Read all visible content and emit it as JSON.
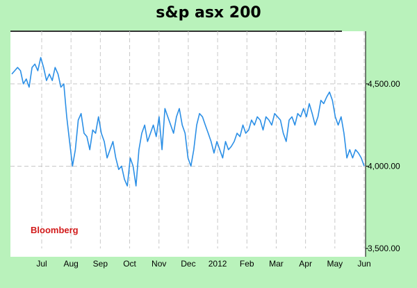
{
  "chart_data": {
    "type": "line",
    "title": "s&p asx 200",
    "xlabel": "",
    "ylabel": "",
    "x_ticks": [
      "Jul",
      "Aug",
      "Sep",
      "Oct",
      "Nov",
      "Dec",
      "2012",
      "Feb",
      "Mar",
      "Apr",
      "May",
      "Jun"
    ],
    "y_ticks": [
      "3,500.00",
      "4,000.00",
      "4,500.00"
    ],
    "y_tick_values": [
      3500,
      4000,
      4500
    ],
    "ylim": [
      3500,
      4820
    ],
    "grid": true,
    "watermark": "Bloomberg",
    "series": [
      {
        "color": "#2b8fe6",
        "values": [
          4560,
          4580,
          4600,
          4580,
          4500,
          4530,
          4480,
          4600,
          4620,
          4580,
          4660,
          4600,
          4520,
          4560,
          4520,
          4600,
          4560,
          4480,
          4500,
          4300,
          4150,
          4000,
          4100,
          4280,
          4320,
          4200,
          4180,
          4100,
          4220,
          4200,
          4300,
          4200,
          4150,
          4050,
          4100,
          4150,
          4050,
          3980,
          4000,
          3920,
          3880,
          4050,
          4000,
          3880,
          4100,
          4200,
          4250,
          4150,
          4200,
          4250,
          4180,
          4300,
          4100,
          4350,
          4300,
          4250,
          4200,
          4300,
          4350,
          4250,
          4200,
          4050,
          4000,
          4100,
          4250,
          4320,
          4300,
          4250,
          4200,
          4150,
          4080,
          4150,
          4100,
          4050,
          4150,
          4100,
          4120,
          4150,
          4200,
          4180,
          4250,
          4200,
          4220,
          4280,
          4250,
          4300,
          4280,
          4220,
          4300,
          4280,
          4250,
          4320,
          4300,
          4280,
          4200,
          4150,
          4280,
          4300,
          4250,
          4320,
          4300,
          4350,
          4300,
          4380,
          4320,
          4250,
          4300,
          4400,
          4380,
          4420,
          4450,
          4400,
          4300,
          4250,
          4300,
          4200,
          4050,
          4100,
          4050,
          4100,
          4080,
          4050,
          4000
        ]
      }
    ]
  }
}
